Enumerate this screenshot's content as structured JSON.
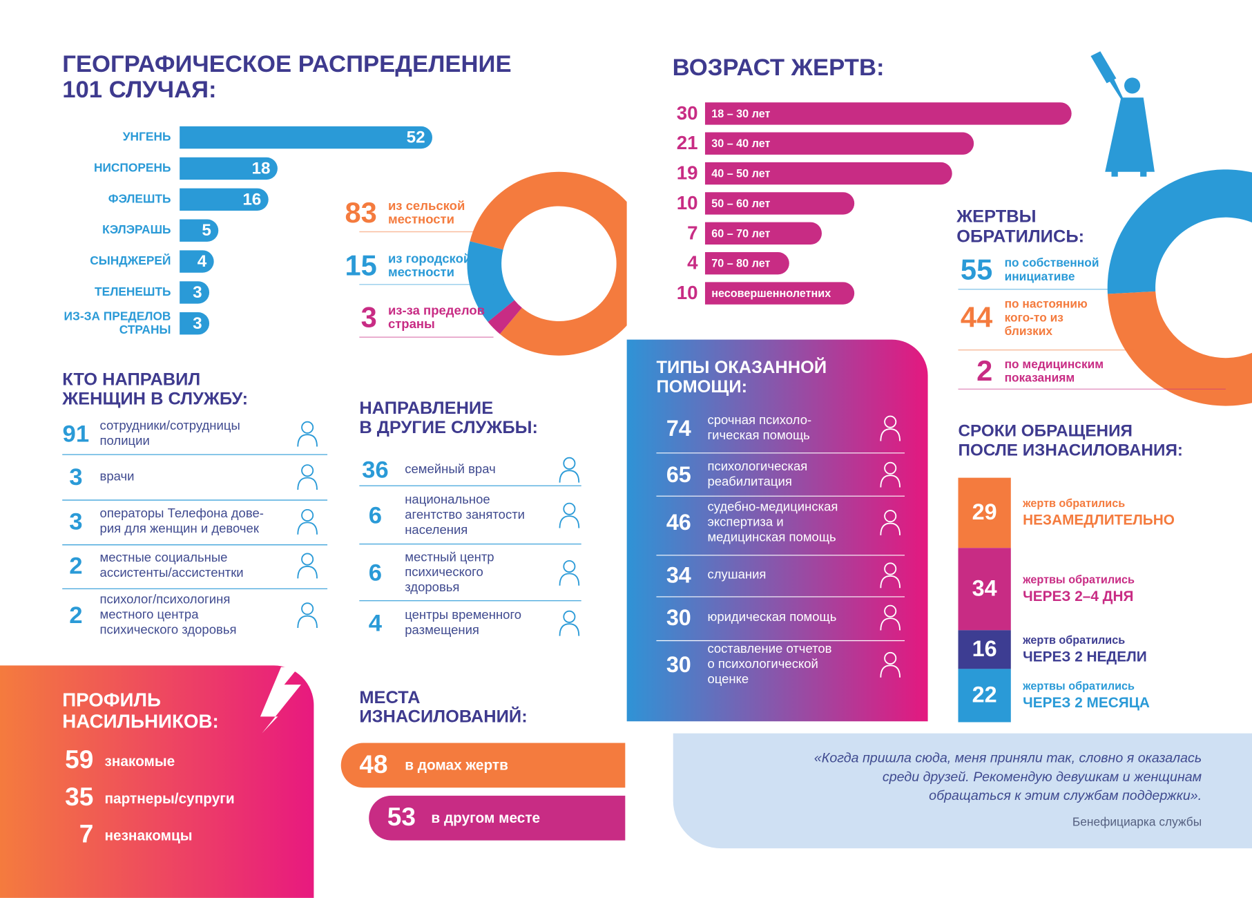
{
  "chart_data": [
    {
      "type": "bar",
      "title": "ГЕОГРАФИЧЕСКОЕ РАСПРЕДЕЛЕНИЕ\n101 СЛУЧАЯ:",
      "categories": [
        "УНГЕНЬ",
        "НИСПОРЕНЬ",
        "ФЭЛЕШТЬ",
        "КЭЛЭРАШЬ",
        "СЫНДЖЕРЕЙ",
        "ТЕЛЕНЕШТЬ",
        "ИЗ-ЗА ПРЕДЕЛОВ\nСТРАНЫ"
      ],
      "values": [
        52,
        18,
        16,
        5,
        4,
        3,
        3
      ],
      "color": "#2a9ad7"
    },
    {
      "type": "donut",
      "categories": [
        "из сельской\nместности",
        "из городской\nместности",
        "из-за пределов\nстраны"
      ],
      "values": [
        83,
        15,
        3
      ],
      "colors": [
        "#f47b3e",
        "#2a9ad7",
        "#c82c84"
      ]
    },
    {
      "type": "bar",
      "title": "ВОЗРАСТ ЖЕРТВ:",
      "categories": [
        "18 – 30 лет",
        "30 – 40 лет",
        "40 – 50 лет",
        "50 – 60 лет",
        "60 – 70 лет",
        "70 – 80 лет",
        "несовершеннолетних"
      ],
      "values": [
        30,
        21,
        19,
        10,
        7,
        4,
        10
      ],
      "color": "#c82c84"
    },
    {
      "type": "donut",
      "title": "ЖЕРТВЫ\nОБРАТИЛИСЬ:",
      "categories": [
        "по собственной\nинициативе",
        "по настоянию\nкого-то из\nблизких",
        "по медицинским\nпоказаниям"
      ],
      "values": [
        55,
        44,
        2
      ],
      "colors": [
        "#2a9ad7",
        "#f47b3e",
        "#c82c84"
      ]
    },
    {
      "type": "stacked-bar",
      "title": "СРОКИ ОБРАЩЕНИЯ\nПОСЛЕ ИЗНАСИЛОВАНИЯ:",
      "captions": [
        "жертв обратились",
        "жертвы обратились",
        "жертв обратились",
        "жертвы обратились"
      ],
      "categories": [
        "НЕЗАМЕДЛИТЕЛЬНО",
        "ЧЕРЕЗ 2–4 ДНЯ",
        "ЧЕРЕЗ 2 НЕДЕЛИ",
        "ЧЕРЕЗ 2 МЕСЯЦА"
      ],
      "values": [
        29,
        34,
        16,
        22
      ],
      "colors": [
        "#f47b3e",
        "#c82c84",
        "#3d3d92",
        "#2a9ad7"
      ]
    }
  ],
  "referrers": {
    "title": "КТО НАПРАВИЛ\nЖЕНЩИН В СЛУЖБУ:",
    "items": [
      {
        "value": 91,
        "label": "сотрудники/сотрудницы\nполиции"
      },
      {
        "value": 3,
        "label": "врачи"
      },
      {
        "value": 3,
        "label": "операторы Телефона дове-\nрия для женщин и девочек"
      },
      {
        "value": 2,
        "label": "местные социальные\nассистенты/ассистентки"
      },
      {
        "value": 2,
        "label": "психолог/психологиня\nместного центра\nпсихического здоровья"
      }
    ]
  },
  "redirections": {
    "title": "НАПРАВЛЕНИЕ\nВ ДРУГИЕ СЛУЖБЫ:",
    "items": [
      {
        "value": 36,
        "label": "семейный врач"
      },
      {
        "value": 6,
        "label": "национальное\nагентство занятости\nнаселения"
      },
      {
        "value": 6,
        "label": "местный центр\nпсихического\nздоровья"
      },
      {
        "value": 4,
        "label": "центры временного\nразмещения"
      }
    ]
  },
  "assistance": {
    "title": "ТИПЫ ОКАЗАННОЙ\nПОМОЩИ:",
    "items": [
      {
        "value": 74,
        "label": "срочная психоло-\nгическая помощь"
      },
      {
        "value": 65,
        "label": "психологическая\nреабилитация"
      },
      {
        "value": 46,
        "label": "судебно-медицинская\nэкспертиза и\nмедицинская помощь"
      },
      {
        "value": 34,
        "label": "слушания"
      },
      {
        "value": 30,
        "label": "юридическая помощь"
      },
      {
        "value": 30,
        "label": "составление отчетов\nо психологической\nоценке"
      }
    ]
  },
  "perpetrators": {
    "title": "ПРОФИЛЬ\nНАСИЛЬНИКОВ:",
    "items": [
      {
        "value": 59,
        "label": "знакомые"
      },
      {
        "value": 35,
        "label": "партнеры/супруги"
      },
      {
        "value": 7,
        "label": "незнакомцы"
      }
    ]
  },
  "locations": {
    "title": "МЕСТА\nИЗНАСИЛОВАНИЙ:",
    "items": [
      {
        "value": 48,
        "label": "в домах жертв"
      },
      {
        "value": 53,
        "label": "в другом месте"
      }
    ]
  },
  "quote": {
    "text": "«Когда пришла сюда, меня приняли так, словно я оказалась\nсреди друзей. Рекомендую девушкам и женщинам\nобращаться к этим службам поддержки».",
    "author": "Бенефициарка службы"
  }
}
